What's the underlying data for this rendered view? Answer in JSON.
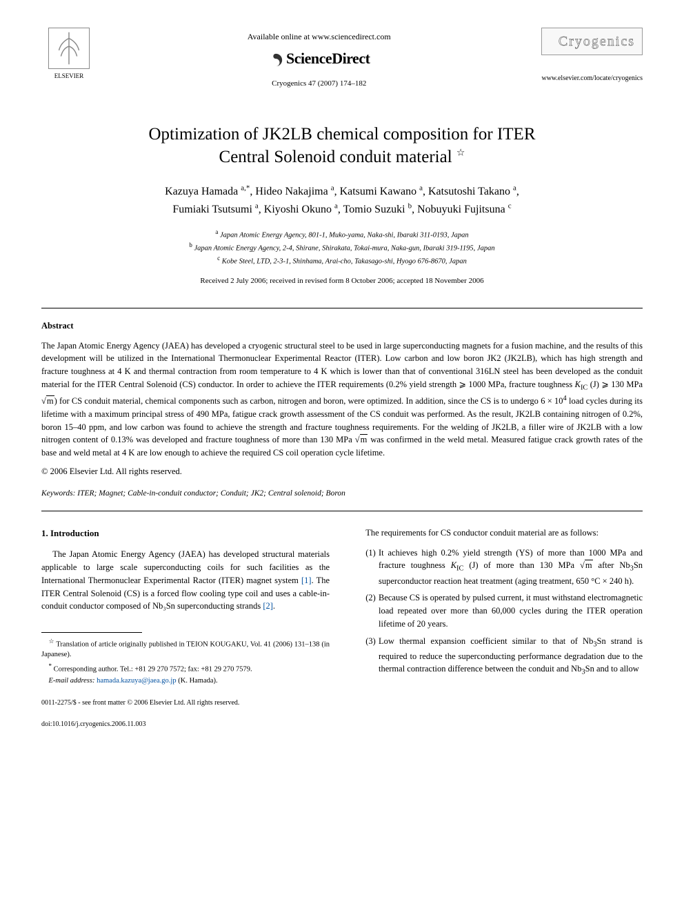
{
  "header": {
    "available_text": "Available online at www.sciencedirect.com",
    "sd_label": "ScienceDirect",
    "citation": "Cryogenics 47 (2007) 174–182",
    "journal_name": "Cryogenics",
    "journal_url": "www.elsevier.com/locate/cryogenics",
    "elsevier_label": "ELSEVIER"
  },
  "title": {
    "line1": "Optimization of JK2LB chemical composition for ITER",
    "line2": "Central Solenoid conduit material",
    "star": "☆"
  },
  "authors": {
    "line1_html": "Kazuya Hamada <sup>a,*</sup>, Hideo Nakajima <sup>a</sup>, Katsumi Kawano <sup>a</sup>, Katsutoshi Takano <sup>a</sup>,",
    "line2_html": "Fumiaki Tsutsumi <sup>a</sup>, Kiyoshi Okuno <sup>a</sup>, Tomio Suzuki <sup>b</sup>, Nobuyuki Fujitsuna <sup>c</sup>"
  },
  "affils": {
    "a": "Japan Atomic Energy Agency, 801-1, Muko-yama, Naka-shi, Ibaraki 311-0193, Japan",
    "b": "Japan Atomic Energy Agency, 2-4, Shirane, Shirakata, Tokai-mura, Naka-gun, Ibaraki 319-1195, Japan",
    "c": "Kobe Steel, LTD, 2-3-1, Shinhama, Arai-cho, Takasago-shi, Hyogo 676-8670, Japan"
  },
  "dates": "Received 2 July 2006; received in revised form 8 October 2006; accepted 18 November 2006",
  "abstract": {
    "heading": "Abstract",
    "body": "The Japan Atomic Energy Agency (JAEA) has developed a cryogenic structural steel to be used in large superconducting magnets for a fusion machine, and the results of this development will be utilized in the International Thermonuclear Experimental Reactor (ITER). Low carbon and low boron JK2 (JK2LB), which has high strength and fracture toughness at 4 K and thermal contraction from room temperature to 4 K which is lower than that of conventional 316LN steel has been developed as the conduit material for the ITER Central Solenoid (CS) conductor. In order to achieve the ITER requirements (0.2% yield strength ⩾ 1000 MPa, fracture toughness KIC (J) ⩾ 130 MPa √m) for CS conduit material, chemical components such as carbon, nitrogen and boron, were optimized. In addition, since the CS is to undergo 6 × 10⁴ load cycles during its lifetime with a maximum principal stress of 490 MPa, fatigue crack growth assessment of the CS conduit was performed. As the result, JK2LB containing nitrogen of 0.2%, boron 15–40 ppm, and low carbon was found to achieve the strength and fracture toughness requirements. For the welding of JK2LB, a filler wire of JK2LB with a low nitrogen content of 0.13% was developed and fracture toughness of more than 130 MPa √m was confirmed in the weld metal. Measured fatigue crack growth rates of the base and weld metal at 4 K are low enough to achieve the required CS coil operation cycle lifetime.",
    "copyright": "© 2006 Elsevier Ltd. All rights reserved."
  },
  "keywords": {
    "label": "Keywords:",
    "text": "ITER; Magnet; Cable-in-conduit conductor; Conduit; JK2; Central solenoid; Boron"
  },
  "intro": {
    "heading": "1. Introduction",
    "p1_a": "The Japan Atomic Energy Agency (JAEA) has developed structural materials applicable to large scale superconducting coils for such facilities as the International Thermonuclear Experimental Ractor (ITER) magnet system ",
    "ref1": "[1]",
    "p1_b": ". The ITER Central Solenoid (CS) is a forced flow cooling type coil and uses a cable-in-conduit conductor composed of Nb₃Sn superconducting strands ",
    "ref2": "[2]",
    "p1_c": "."
  },
  "col2": {
    "lead": "The requirements for CS conductor conduit material are as follows:",
    "items": [
      "It achieves high 0.2% yield strength (YS) of more than 1000 MPa and fracture toughness KIC (J) of more than 130 MPa √m after Nb₃Sn superconductor reaction heat treatment (aging treatment, 650 °C × 240 h).",
      "Because CS is operated by pulsed current, it must withstand electromagnetic load repeated over more than 60,000 cycles during the ITER operation lifetime of 20 years.",
      "Low thermal expansion coefficient similar to that of Nb₃Sn strand is required to reduce the superconducting performance degradation due to the thermal contraction difference between the conduit and Nb₃Sn and to allow"
    ]
  },
  "footnotes": {
    "translation": "Translation of article originally published in TEION KOUGAKU, Vol. 41 (2006) 131–138 (in Japanese).",
    "corresponding": "Corresponding author. Tel.: +81 29 270 7572; fax: +81 29 270 7579.",
    "email_label": "E-mail address:",
    "email": "hamada.kazuya@jaea.go.jp",
    "email_suffix": "(K. Hamada)."
  },
  "bottom": {
    "copyright": "0011-2275/$ - see front matter © 2006 Elsevier Ltd. All rights reserved.",
    "doi": "doi:10.1016/j.cryogenics.2006.11.003"
  },
  "colors": {
    "text": "#000000",
    "link": "#0050a0",
    "bg": "#ffffff"
  }
}
